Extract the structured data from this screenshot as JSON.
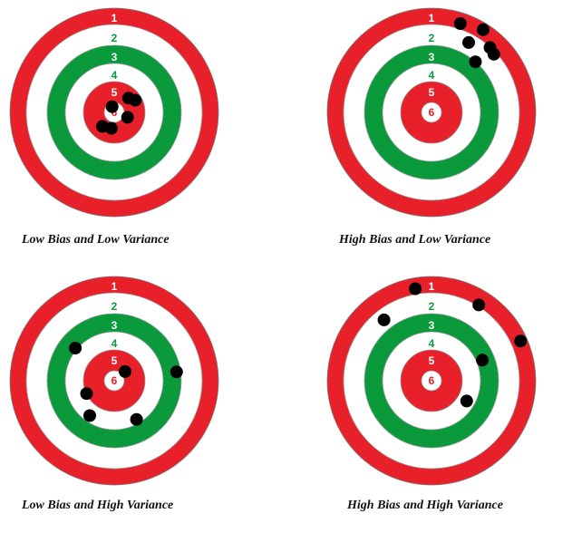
{
  "colors": {
    "red": "#e8202a",
    "green": "#0a9a3c",
    "white": "#ffffff",
    "ring_number_on_red": "#ffffff",
    "ring_number_on_white": "#0a9a3c",
    "center_number": "#e8202a",
    "shot": "#000000"
  },
  "ring_labels": [
    "1",
    "2",
    "3",
    "4",
    "5",
    "6"
  ],
  "targets": [
    {
      "caption": "Low Bias and Low Variance",
      "shots": [
        {
          "r": 0.2,
          "angle_deg": 45
        },
        {
          "r": 0.24,
          "angle_deg": 30
        },
        {
          "r": 0.06,
          "angle_deg": 110
        },
        {
          "r": 0.14,
          "angle_deg": -20
        },
        {
          "r": 0.16,
          "angle_deg": -100
        },
        {
          "r": 0.18,
          "angle_deg": -130
        }
      ]
    },
    {
      "caption": "High Bias and Low Variance",
      "shots": [
        {
          "r": 0.92,
          "angle_deg": 72
        },
        {
          "r": 0.96,
          "angle_deg": 58
        },
        {
          "r": 0.86,
          "angle_deg": 48
        },
        {
          "r": 0.78,
          "angle_deg": 62
        },
        {
          "r": 0.84,
          "angle_deg": 43
        },
        {
          "r": 0.66,
          "angle_deg": 49
        }
      ]
    },
    {
      "caption": "Low Bias and High Variance",
      "shots": [
        {
          "r": 0.5,
          "angle_deg": 140
        },
        {
          "r": 0.62,
          "angle_deg": 8
        },
        {
          "r": 0.14,
          "angle_deg": 40
        },
        {
          "r": 0.3,
          "angle_deg": 205
        },
        {
          "r": 0.42,
          "angle_deg": 235
        },
        {
          "r": 0.44,
          "angle_deg": 300
        }
      ]
    },
    {
      "caption": "High Bias and High Variance",
      "shots": [
        {
          "r": 0.92,
          "angle_deg": 100
        },
        {
          "r": 0.88,
          "angle_deg": 58
        },
        {
          "r": 0.96,
          "angle_deg": 24
        },
        {
          "r": 0.54,
          "angle_deg": 22
        },
        {
          "r": 0.76,
          "angle_deg": 128
        },
        {
          "r": 0.4,
          "angle_deg": -30
        }
      ]
    }
  ]
}
